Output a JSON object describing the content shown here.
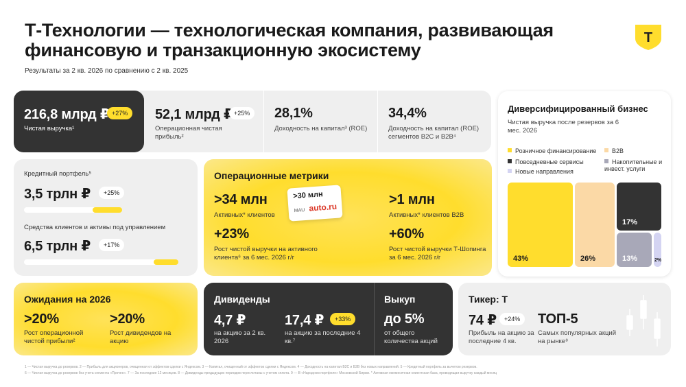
{
  "header": {
    "title": "Т-Технологии — технологическая компания, развивающая финансовую и транзакционную экосистему",
    "subtitle": "Результаты за 2 кв. 2026 по сравнению с 2 кв. 2025",
    "logo_letter": "Т"
  },
  "kpis": {
    "revenue": {
      "value": "216,8 млрд ₽",
      "badge": "+27%",
      "label": "Чистая выручка¹"
    },
    "profit": {
      "value": "52,1 млрд ₽",
      "badge": "+25%",
      "label": "Операционная чистая прибыль²"
    },
    "roe": {
      "value": "28,1%",
      "label": "Доходность на капитал³ (ROE)"
    },
    "roe_b2c": {
      "value": "34,4%",
      "label": "Доходность на капитал (ROE) сегментов B2C и B2B⁴"
    }
  },
  "portfolio": {
    "credit_label": "Кредитный портфель⁵",
    "credit_value": "3,5 трлн ₽",
    "credit_badge": "+25%",
    "credit_bar": 0.3,
    "funds_label": "Средства клиентов и активы под управлением",
    "funds_value": "6,5 трлн ₽",
    "funds_badge": "+17%",
    "funds_bar": 0.16
  },
  "operational": {
    "heading": "Операционные метрики",
    "clients_value": ">34 млн",
    "clients_label": "Активных* клиентов",
    "mau_value": ">30 млн",
    "mau_label": "MAU",
    "mau_brand": "auto.ru",
    "b2b_value": ">1 млн",
    "b2b_label": "Активных* клиентов B2B",
    "growth_value": "+23%",
    "growth_label": "Рост чистой выручки на активного клиента⁶ за 6 мес. 2026 г/г",
    "shopping_value": "+60%",
    "shopping_label": "Рост чистой выручки Т-Шопинга за 6 мес. 2026 г/г"
  },
  "diversified": {
    "heading": "Диверсифицированный бизнес",
    "subheading": "Чистая выручка после резервов за 6 мес. 2026",
    "legend": [
      {
        "label": "Розничное финансирование",
        "color": "#ffdd2d"
      },
      {
        "label": "B2B",
        "color": "#fbd9a6"
      },
      {
        "label": "Повседневные сервисы",
        "color": "#333333"
      },
      {
        "label": "Накопительные и инвест. услуги",
        "color": "#a8a8b8"
      },
      {
        "label": "Новые направления",
        "color": "#d4d4f2"
      }
    ],
    "shares": [
      "43%",
      "26%",
      "17%",
      "13%",
      "2%"
    ]
  },
  "expectations": {
    "heading": "Ожидания на 2026",
    "op_value": ">20%",
    "op_label": "Рост операционной чистой прибыли²",
    "div_value": ">20%",
    "div_label": "Рост дивидендов на акцию"
  },
  "dividends": {
    "heading": "Дивиденды",
    "q_value": "4,7 ₽",
    "q_label": "на акцию за 2 кв. 2026",
    "ltm_value": "17,4 ₽",
    "ltm_badge": "+33%",
    "ltm_label": "на акцию за последние 4 кв.⁷"
  },
  "buyback": {
    "heading": "Выкуп",
    "value": "до 5%",
    "label": "от общего количества акций"
  },
  "ticker": {
    "heading": "Тикер: Т",
    "profit_value": "74 ₽",
    "profit_badge": "+24%",
    "profit_label": "Прибыль на акцию за последние 4 кв.",
    "top_value": "ТОП-5",
    "top_label": "Самых популярных акций на рынке⁸"
  },
  "footnotes": {
    "line1": "1 — Чистая выручка до резервов. 2 — Прибыль для акционеров, очищенная от эффектов сделки с Яндексом. 3 — Капитал, очищенный от эффектов сделки с Яндексом. 4 — Доходность на капитал B2C и B2B без новых направлений. 5 — Кредитный портфель за вычетом резервов.",
    "line2": "6 — Чистая выручка до резервов без учета сегмента «Прочее». 7 — За последние 12 месяцев. 8 — Дивиденды предыдущих периодов пересчитаны с учетом сплита. 9 — В «Народном портфеле» Московской Биржи. * Активная ежемесячная клиентская база, проводящая выручку каждый месяц"
  }
}
